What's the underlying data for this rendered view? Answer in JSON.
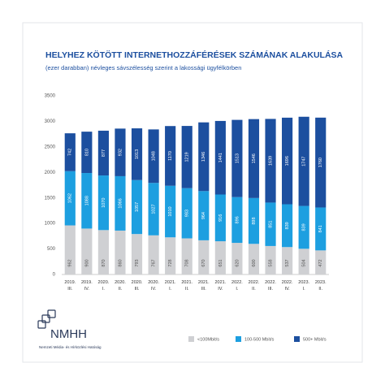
{
  "chart_data": {
    "type": "stacked-bar",
    "title": "HELYHEZ KÖTÖTT INTERNETHOZZÁFÉRÉSEK SZÁMÁNAK ALAKULÁSA",
    "subtitle": "(ezer darabban) névleges sávszélesség szerint a lakossági ügyfélkörben",
    "categories": [
      "2019. III.",
      "2019. IV.",
      "2020. I.",
      "2020. II.",
      "2020. III.",
      "2020. IV.",
      "2021. I.",
      "2021. II.",
      "2021. III.",
      "2021. IV.",
      "2022. I.",
      "2022. II.",
      "2022. III.",
      "2022. IV.",
      "2023. I.",
      "2023. II."
    ],
    "series": [
      {
        "name": "<100Mbit/s",
        "color": "#cfd0d3",
        "values": [
          962,
          900,
          870,
          860,
          793,
          767,
          728,
          708,
          670,
          651,
          620,
          600,
          558,
          537,
          504,
          472
        ]
      },
      {
        "name": "100-500 Mbit/s",
        "color": "#1d9fe0",
        "values": [
          1062,
          1088,
          1070,
          1066,
          1057,
          1027,
          1010,
          983,
          964,
          916,
          896,
          898,
          851,
          839,
          839,
          841
        ]
      },
      {
        "name": "500+ Mbit/s",
        "color": "#1c4f9f",
        "values": [
          742,
          810,
          877,
          932,
          1013,
          1048,
          1170,
          1219,
          1346,
          1441,
          1513,
          1546,
          1639,
          1696,
          1747,
          1760
        ]
      }
    ],
    "ylim": [
      0,
      3500
    ],
    "yticks": [
      0,
      500,
      1000,
      1500,
      2000,
      2500,
      3000,
      3500
    ],
    "legend": "bottom"
  },
  "logo": {
    "name": "NMHH",
    "text": "Nemzeti Média- és Hírközlési Hatóság"
  }
}
